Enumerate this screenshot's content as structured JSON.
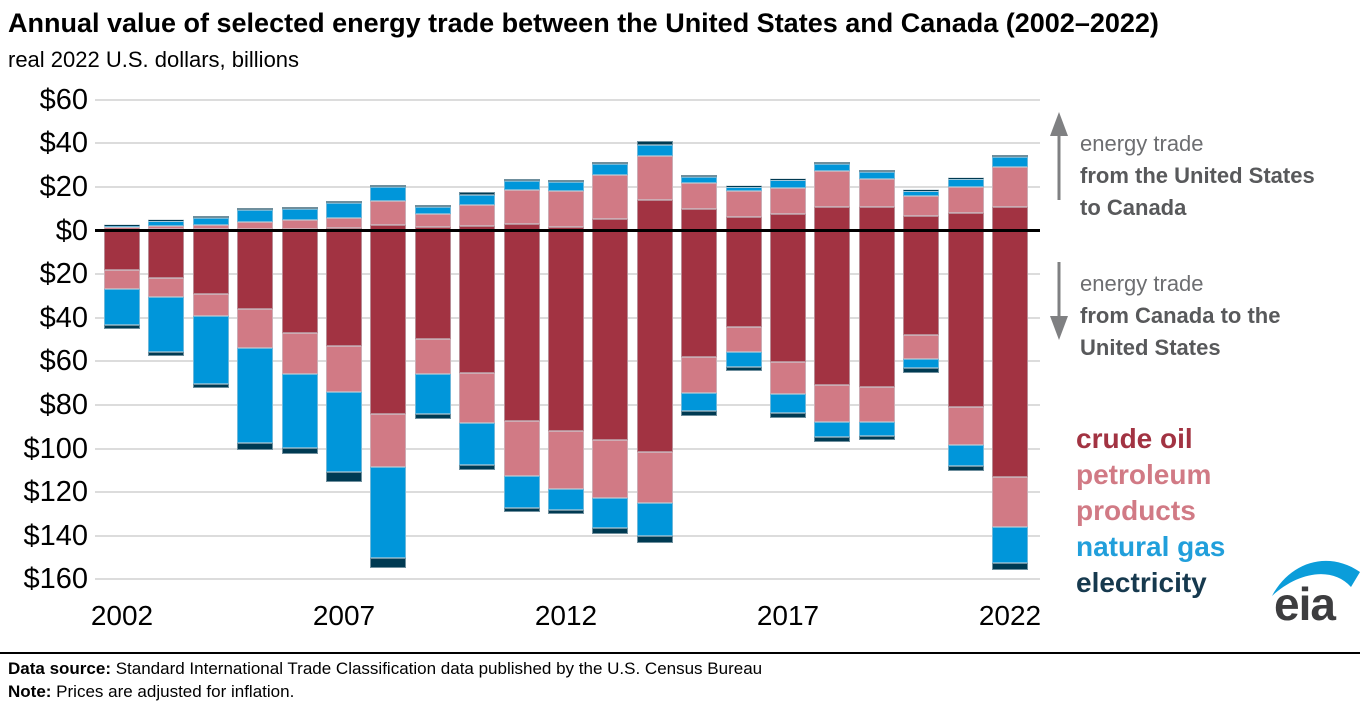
{
  "chart_data": {
    "type": "bar",
    "variant": "diverging stacked columns (positive = exports US to Canada, negative = imports Canada to US)",
    "title": "Annual value of selected energy trade between the United States and Canada (2002–2022)",
    "subtitle": "real 2022 U.S. dollars, billions",
    "unit": "billion real 2022 U.S. dollars",
    "grid": true,
    "years": [
      2002,
      2003,
      2004,
      2005,
      2006,
      2007,
      2008,
      2009,
      2010,
      2011,
      2012,
      2013,
      2014,
      2015,
      2016,
      2017,
      2018,
      2019,
      2020,
      2021,
      2022
    ],
    "x_tick_labels": {
      "0": "2002",
      "5": "2007",
      "10": "2012",
      "15": "2017",
      "20": "2022"
    },
    "y_axis": {
      "up_max": 60,
      "down_max": 160,
      "tick_step": 20,
      "tick_labels_top_to_bottom": [
        "$60",
        "$40",
        "$20",
        "$0",
        "$20",
        "$40",
        "$60",
        "$80",
        "$100",
        "$120",
        "$140",
        "$160"
      ]
    },
    "stack_order_from_zero": [
      "crude_oil",
      "petroleum_products",
      "natural_gas",
      "electricity"
    ],
    "series_labels": {
      "crude_oil": "crude oil",
      "petroleum_products": "petroleum products",
      "natural_gas": "natural gas",
      "electricity": "electricity"
    },
    "colors": {
      "crude_oil": "#a23342",
      "petroleum_products": "#d17a85",
      "natural_gas": "#0096da",
      "electricity": "#003a52"
    },
    "us_to_canada": {
      "crude_oil": [
        0.3,
        0.5,
        0.8,
        0.9,
        0.9,
        1.1,
        2.3,
        1.4,
        2.2,
        2.8,
        1.6,
        5.3,
        13.8,
        9.7,
        6.3,
        7.5,
        10.6,
        10.9,
        6.6,
        7.8,
        10.6
      ],
      "petroleum_products": [
        1.3,
        1.7,
        1.7,
        2.8,
        3.8,
        4.8,
        11.4,
        6.1,
        9.4,
        15.6,
        16.3,
        20.0,
        20.3,
        11.9,
        11.6,
        11.9,
        16.9,
        12.8,
        9.1,
        12.2,
        18.4
      ],
      "natural_gas": [
        0.5,
        2.0,
        3.1,
        5.5,
        5.0,
        6.6,
        6.3,
        3.1,
        4.8,
        4.2,
        4.4,
        5.0,
        5.3,
        3.1,
        2.2,
        3.8,
        2.8,
        3.1,
        2.3,
        3.4,
        4.7
      ],
      "electricity": [
        0.4,
        0.8,
        0.9,
        1.3,
        1.3,
        1.1,
        1.1,
        1.1,
        1.1,
        1.1,
        0.9,
        0.9,
        1.6,
        0.9,
        0.5,
        0.5,
        0.9,
        0.9,
        0.5,
        0.8,
        0.9
      ]
    },
    "canada_to_us": {
      "crude_oil": [
        18.0,
        21.7,
        29.1,
        36.1,
        46.8,
        53.1,
        84.1,
        49.7,
        65.2,
        87.3,
        92.0,
        96.3,
        101.5,
        58.2,
        44.4,
        60.3,
        71.1,
        71.6,
        47.9,
        81.0,
        113.0
      ],
      "petroleum_products": [
        9.0,
        8.8,
        10.3,
        17.6,
        19.2,
        21.2,
        24.6,
        16.2,
        22.9,
        25.1,
        26.5,
        26.2,
        23.4,
        16.3,
        11.4,
        14.8,
        16.7,
        16.3,
        11.0,
        17.2,
        22.8
      ],
      "natural_gas": [
        16.5,
        25.1,
        31.0,
        43.7,
        33.9,
        36.3,
        41.7,
        18.1,
        19.6,
        15.0,
        9.5,
        13.8,
        15.4,
        8.4,
        6.8,
        8.6,
        7.0,
        6.2,
        4.4,
        9.9,
        16.7
      ],
      "electricity": [
        1.8,
        1.8,
        1.8,
        3.5,
        2.5,
        4.7,
        4.4,
        2.5,
        2.1,
        1.9,
        2.2,
        3.0,
        3.0,
        2.2,
        1.8,
        2.2,
        2.2,
        2.2,
        1.9,
        2.2,
        3.4
      ]
    }
  },
  "annotations": {
    "up": {
      "line1": "energy trade",
      "line2": "from the United States to Canada"
    },
    "down": {
      "line1": "energy trade",
      "line2": "from Canada to the United States"
    }
  },
  "legend": {
    "items": [
      {
        "label": "crude oil",
        "color": "#a23342"
      },
      {
        "label": "petroleum products",
        "color": "#d17a85"
      },
      {
        "label": "natural gas",
        "color": "#219fdb"
      },
      {
        "label": "electricity",
        "color": "#16394e"
      }
    ]
  },
  "logo": {
    "text": "eia",
    "swoosh_color": "#0b9dda",
    "text_color": "#3d3d3f"
  },
  "footer": {
    "source_label": "Data source:",
    "source_text": " Standard International Trade Classification data published by the U.S. Census Bureau",
    "note_label": "Note:",
    "note_text": " Prices are adjusted for inflation."
  }
}
